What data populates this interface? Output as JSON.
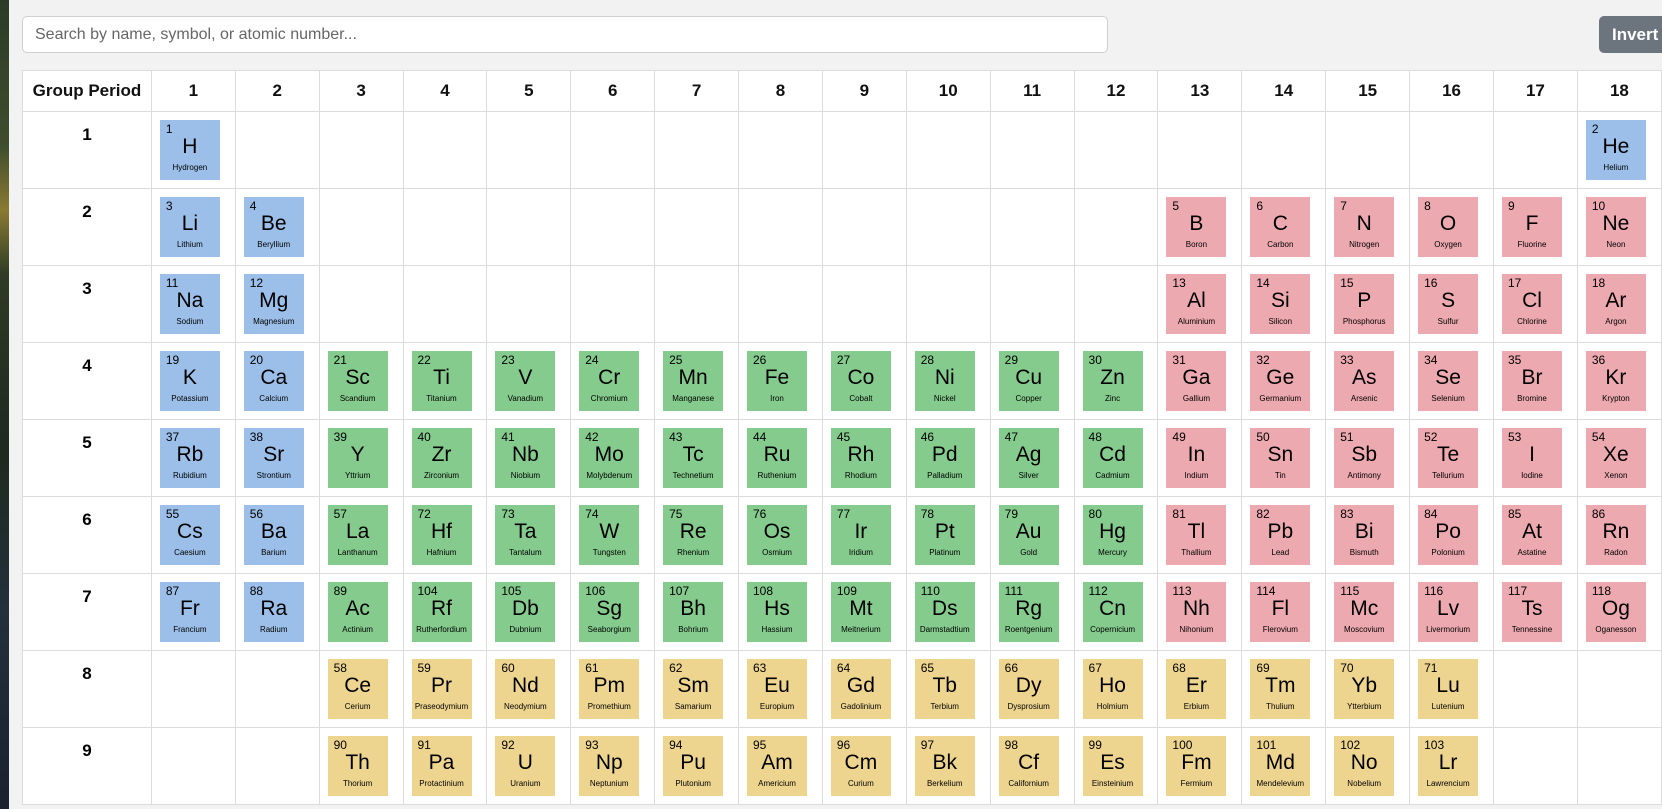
{
  "search": {
    "placeholder": "Search by name, symbol, or atomic number..."
  },
  "toolbar": {
    "invert_label": "Invert"
  },
  "table": {
    "corner_label": "Group Period",
    "groups": [
      "1",
      "2",
      "3",
      "4",
      "5",
      "6",
      "7",
      "8",
      "9",
      "10",
      "11",
      "12",
      "13",
      "14",
      "15",
      "16",
      "17",
      "18"
    ],
    "periods": [
      "1",
      "2",
      "3",
      "4",
      "5",
      "6",
      "7",
      "8",
      "9"
    ]
  },
  "category_colors": {
    "blue": "#9bbfe8",
    "pink": "#eda9b0",
    "green": "#84cb8d",
    "yellow": "#eed58f"
  },
  "elements": [
    {
      "number": "1",
      "symbol": "H",
      "name": "Hydrogen",
      "period": 1,
      "group": 1,
      "color": "blue"
    },
    {
      "number": "2",
      "symbol": "He",
      "name": "Helium",
      "period": 1,
      "group": 18,
      "color": "blue"
    },
    {
      "number": "3",
      "symbol": "Li",
      "name": "Lithium",
      "period": 2,
      "group": 1,
      "color": "blue"
    },
    {
      "number": "4",
      "symbol": "Be",
      "name": "Beryllium",
      "period": 2,
      "group": 2,
      "color": "blue"
    },
    {
      "number": "5",
      "symbol": "B",
      "name": "Boron",
      "period": 2,
      "group": 13,
      "color": "pink"
    },
    {
      "number": "6",
      "symbol": "C",
      "name": "Carbon",
      "period": 2,
      "group": 14,
      "color": "pink"
    },
    {
      "number": "7",
      "symbol": "N",
      "name": "Nitrogen",
      "period": 2,
      "group": 15,
      "color": "pink"
    },
    {
      "number": "8",
      "symbol": "O",
      "name": "Oxygen",
      "period": 2,
      "group": 16,
      "color": "pink"
    },
    {
      "number": "9",
      "symbol": "F",
      "name": "Fluorine",
      "period": 2,
      "group": 17,
      "color": "pink"
    },
    {
      "number": "10",
      "symbol": "Ne",
      "name": "Neon",
      "period": 2,
      "group": 18,
      "color": "pink"
    },
    {
      "number": "11",
      "symbol": "Na",
      "name": "Sodium",
      "period": 3,
      "group": 1,
      "color": "blue"
    },
    {
      "number": "12",
      "symbol": "Mg",
      "name": "Magnesium",
      "period": 3,
      "group": 2,
      "color": "blue"
    },
    {
      "number": "13",
      "symbol": "Al",
      "name": "Aluminium",
      "period": 3,
      "group": 13,
      "color": "pink"
    },
    {
      "number": "14",
      "symbol": "Si",
      "name": "Silicon",
      "period": 3,
      "group": 14,
      "color": "pink"
    },
    {
      "number": "15",
      "symbol": "P",
      "name": "Phosphorus",
      "period": 3,
      "group": 15,
      "color": "pink"
    },
    {
      "number": "16",
      "symbol": "S",
      "name": "Sulfur",
      "period": 3,
      "group": 16,
      "color": "pink"
    },
    {
      "number": "17",
      "symbol": "Cl",
      "name": "Chlorine",
      "period": 3,
      "group": 17,
      "color": "pink"
    },
    {
      "number": "18",
      "symbol": "Ar",
      "name": "Argon",
      "period": 3,
      "group": 18,
      "color": "pink"
    },
    {
      "number": "19",
      "symbol": "K",
      "name": "Potassium",
      "period": 4,
      "group": 1,
      "color": "blue"
    },
    {
      "number": "20",
      "symbol": "Ca",
      "name": "Calcium",
      "period": 4,
      "group": 2,
      "color": "blue"
    },
    {
      "number": "21",
      "symbol": "Sc",
      "name": "Scandium",
      "period": 4,
      "group": 3,
      "color": "green"
    },
    {
      "number": "22",
      "symbol": "Ti",
      "name": "Titanium",
      "period": 4,
      "group": 4,
      "color": "green"
    },
    {
      "number": "23",
      "symbol": "V",
      "name": "Vanadium",
      "period": 4,
      "group": 5,
      "color": "green"
    },
    {
      "number": "24",
      "symbol": "Cr",
      "name": "Chromium",
      "period": 4,
      "group": 6,
      "color": "green"
    },
    {
      "number": "25",
      "symbol": "Mn",
      "name": "Manganese",
      "period": 4,
      "group": 7,
      "color": "green"
    },
    {
      "number": "26",
      "symbol": "Fe",
      "name": "Iron",
      "period": 4,
      "group": 8,
      "color": "green"
    },
    {
      "number": "27",
      "symbol": "Co",
      "name": "Cobalt",
      "period": 4,
      "group": 9,
      "color": "green"
    },
    {
      "number": "28",
      "symbol": "Ni",
      "name": "Nickel",
      "period": 4,
      "group": 10,
      "color": "green"
    },
    {
      "number": "29",
      "symbol": "Cu",
      "name": "Copper",
      "period": 4,
      "group": 11,
      "color": "green"
    },
    {
      "number": "30",
      "symbol": "Zn",
      "name": "Zinc",
      "period": 4,
      "group": 12,
      "color": "green"
    },
    {
      "number": "31",
      "symbol": "Ga",
      "name": "Gallium",
      "period": 4,
      "group": 13,
      "color": "pink"
    },
    {
      "number": "32",
      "symbol": "Ge",
      "name": "Germanium",
      "period": 4,
      "group": 14,
      "color": "pink"
    },
    {
      "number": "33",
      "symbol": "As",
      "name": "Arsenic",
      "period": 4,
      "group": 15,
      "color": "pink"
    },
    {
      "number": "34",
      "symbol": "Se",
      "name": "Selenium",
      "period": 4,
      "group": 16,
      "color": "pink"
    },
    {
      "number": "35",
      "symbol": "Br",
      "name": "Bromine",
      "period": 4,
      "group": 17,
      "color": "pink"
    },
    {
      "number": "36",
      "symbol": "Kr",
      "name": "Krypton",
      "period": 4,
      "group": 18,
      "color": "pink"
    },
    {
      "number": "37",
      "symbol": "Rb",
      "name": "Rubidium",
      "period": 5,
      "group": 1,
      "color": "blue"
    },
    {
      "number": "38",
      "symbol": "Sr",
      "name": "Strontium",
      "period": 5,
      "group": 2,
      "color": "blue"
    },
    {
      "number": "39",
      "symbol": "Y",
      "name": "Yttrium",
      "period": 5,
      "group": 3,
      "color": "green"
    },
    {
      "number": "40",
      "symbol": "Zr",
      "name": "Zirconium",
      "period": 5,
      "group": 4,
      "color": "green"
    },
    {
      "number": "41",
      "symbol": "Nb",
      "name": "Niobium",
      "period": 5,
      "group": 5,
      "color": "green"
    },
    {
      "number": "42",
      "symbol": "Mo",
      "name": "Molybdenum",
      "period": 5,
      "group": 6,
      "color": "green"
    },
    {
      "number": "43",
      "symbol": "Tc",
      "name": "Technetium",
      "period": 5,
      "group": 7,
      "color": "green"
    },
    {
      "number": "44",
      "symbol": "Ru",
      "name": "Ruthenium",
      "period": 5,
      "group": 8,
      "color": "green"
    },
    {
      "number": "45",
      "symbol": "Rh",
      "name": "Rhodium",
      "period": 5,
      "group": 9,
      "color": "green"
    },
    {
      "number": "46",
      "symbol": "Pd",
      "name": "Palladium",
      "period": 5,
      "group": 10,
      "color": "green"
    },
    {
      "number": "47",
      "symbol": "Ag",
      "name": "Silver",
      "period": 5,
      "group": 11,
      "color": "green"
    },
    {
      "number": "48",
      "symbol": "Cd",
      "name": "Cadmium",
      "period": 5,
      "group": 12,
      "color": "green"
    },
    {
      "number": "49",
      "symbol": "In",
      "name": "Indium",
      "period": 5,
      "group": 13,
      "color": "pink"
    },
    {
      "number": "50",
      "symbol": "Sn",
      "name": "Tin",
      "period": 5,
      "group": 14,
      "color": "pink"
    },
    {
      "number": "51",
      "symbol": "Sb",
      "name": "Antimony",
      "period": 5,
      "group": 15,
      "color": "pink"
    },
    {
      "number": "52",
      "symbol": "Te",
      "name": "Tellurium",
      "period": 5,
      "group": 16,
      "color": "pink"
    },
    {
      "number": "53",
      "symbol": "I",
      "name": "Iodine",
      "period": 5,
      "group": 17,
      "color": "pink"
    },
    {
      "number": "54",
      "symbol": "Xe",
      "name": "Xenon",
      "period": 5,
      "group": 18,
      "color": "pink"
    },
    {
      "number": "55",
      "symbol": "Cs",
      "name": "Caesium",
      "period": 6,
      "group": 1,
      "color": "blue"
    },
    {
      "number": "56",
      "symbol": "Ba",
      "name": "Barium",
      "period": 6,
      "group": 2,
      "color": "blue"
    },
    {
      "number": "57",
      "symbol": "La",
      "name": "Lanthanum",
      "period": 6,
      "group": 3,
      "color": "green"
    },
    {
      "number": "72",
      "symbol": "Hf",
      "name": "Hafnium",
      "period": 6,
      "group": 4,
      "color": "green"
    },
    {
      "number": "73",
      "symbol": "Ta",
      "name": "Tantalum",
      "period": 6,
      "group": 5,
      "color": "green"
    },
    {
      "number": "74",
      "symbol": "W",
      "name": "Tungsten",
      "period": 6,
      "group": 6,
      "color": "green"
    },
    {
      "number": "75",
      "symbol": "Re",
      "name": "Rhenium",
      "period": 6,
      "group": 7,
      "color": "green"
    },
    {
      "number": "76",
      "symbol": "Os",
      "name": "Osmium",
      "period": 6,
      "group": 8,
      "color": "green"
    },
    {
      "number": "77",
      "symbol": "Ir",
      "name": "Iridium",
      "period": 6,
      "group": 9,
      "color": "green"
    },
    {
      "number": "78",
      "symbol": "Pt",
      "name": "Platinum",
      "period": 6,
      "group": 10,
      "color": "green"
    },
    {
      "number": "79",
      "symbol": "Au",
      "name": "Gold",
      "period": 6,
      "group": 11,
      "color": "green"
    },
    {
      "number": "80",
      "symbol": "Hg",
      "name": "Mercury",
      "period": 6,
      "group": 12,
      "color": "green"
    },
    {
      "number": "81",
      "symbol": "Tl",
      "name": "Thallium",
      "period": 6,
      "group": 13,
      "color": "pink"
    },
    {
      "number": "82",
      "symbol": "Pb",
      "name": "Lead",
      "period": 6,
      "group": 14,
      "color": "pink"
    },
    {
      "number": "83",
      "symbol": "Bi",
      "name": "Bismuth",
      "period": 6,
      "group": 15,
      "color": "pink"
    },
    {
      "number": "84",
      "symbol": "Po",
      "name": "Polonium",
      "period": 6,
      "group": 16,
      "color": "pink"
    },
    {
      "number": "85",
      "symbol": "At",
      "name": "Astatine",
      "period": 6,
      "group": 17,
      "color": "pink"
    },
    {
      "number": "86",
      "symbol": "Rn",
      "name": "Radon",
      "period": 6,
      "group": 18,
      "color": "pink"
    },
    {
      "number": "87",
      "symbol": "Fr",
      "name": "Francium",
      "period": 7,
      "group": 1,
      "color": "blue"
    },
    {
      "number": "88",
      "symbol": "Ra",
      "name": "Radium",
      "period": 7,
      "group": 2,
      "color": "blue"
    },
    {
      "number": "89",
      "symbol": "Ac",
      "name": "Actinium",
      "period": 7,
      "group": 3,
      "color": "green"
    },
    {
      "number": "104",
      "symbol": "Rf",
      "name": "Rutherfordium",
      "period": 7,
      "group": 4,
      "color": "green"
    },
    {
      "number": "105",
      "symbol": "Db",
      "name": "Dubnium",
      "period": 7,
      "group": 5,
      "color": "green"
    },
    {
      "number": "106",
      "symbol": "Sg",
      "name": "Seaborgium",
      "period": 7,
      "group": 6,
      "color": "green"
    },
    {
      "number": "107",
      "symbol": "Bh",
      "name": "Bohrium",
      "period": 7,
      "group": 7,
      "color": "green"
    },
    {
      "number": "108",
      "symbol": "Hs",
      "name": "Hassium",
      "period": 7,
      "group": 8,
      "color": "green"
    },
    {
      "number": "109",
      "symbol": "Mt",
      "name": "Meitnerium",
      "period": 7,
      "group": 9,
      "color": "green"
    },
    {
      "number": "110",
      "symbol": "Ds",
      "name": "Darmstadtium",
      "period": 7,
      "group": 10,
      "color": "green"
    },
    {
      "number": "111",
      "symbol": "Rg",
      "name": "Roentgenium",
      "period": 7,
      "group": 11,
      "color": "green"
    },
    {
      "number": "112",
      "symbol": "Cn",
      "name": "Copernicium",
      "period": 7,
      "group": 12,
      "color": "green"
    },
    {
      "number": "113",
      "symbol": "Nh",
      "name": "Nihonium",
      "period": 7,
      "group": 13,
      "color": "pink"
    },
    {
      "number": "114",
      "symbol": "Fl",
      "name": "Flerovium",
      "period": 7,
      "group": 14,
      "color": "pink"
    },
    {
      "number": "115",
      "symbol": "Mc",
      "name": "Moscovium",
      "period": 7,
      "group": 15,
      "color": "pink"
    },
    {
      "number": "116",
      "symbol": "Lv",
      "name": "Livermorium",
      "period": 7,
      "group": 16,
      "color": "pink"
    },
    {
      "number": "117",
      "symbol": "Ts",
      "name": "Tennessine",
      "period": 7,
      "group": 17,
      "color": "pink"
    },
    {
      "number": "118",
      "symbol": "Og",
      "name": "Oganesson",
      "period": 7,
      "group": 18,
      "color": "pink"
    },
    {
      "number": "58",
      "symbol": "Ce",
      "name": "Cerium",
      "period": 8,
      "group": 3,
      "color": "yellow"
    },
    {
      "number": "59",
      "symbol": "Pr",
      "name": "Praseodymium",
      "period": 8,
      "group": 4,
      "color": "yellow"
    },
    {
      "number": "60",
      "symbol": "Nd",
      "name": "Neodymium",
      "period": 8,
      "group": 5,
      "color": "yellow"
    },
    {
      "number": "61",
      "symbol": "Pm",
      "name": "Promethium",
      "period": 8,
      "group": 6,
      "color": "yellow"
    },
    {
      "number": "62",
      "symbol": "Sm",
      "name": "Samarium",
      "period": 8,
      "group": 7,
      "color": "yellow"
    },
    {
      "number": "63",
      "symbol": "Eu",
      "name": "Europium",
      "period": 8,
      "group": 8,
      "color": "yellow"
    },
    {
      "number": "64",
      "symbol": "Gd",
      "name": "Gadolinium",
      "period": 8,
      "group": 9,
      "color": "yellow"
    },
    {
      "number": "65",
      "symbol": "Tb",
      "name": "Terbium",
      "period": 8,
      "group": 10,
      "color": "yellow"
    },
    {
      "number": "66",
      "symbol": "Dy",
      "name": "Dysprosium",
      "period": 8,
      "group": 11,
      "color": "yellow"
    },
    {
      "number": "67",
      "symbol": "Ho",
      "name": "Holmium",
      "period": 8,
      "group": 12,
      "color": "yellow"
    },
    {
      "number": "68",
      "symbol": "Er",
      "name": "Erbium",
      "period": 8,
      "group": 13,
      "color": "yellow"
    },
    {
      "number": "69",
      "symbol": "Tm",
      "name": "Thulium",
      "period": 8,
      "group": 14,
      "color": "yellow"
    },
    {
      "number": "70",
      "symbol": "Yb",
      "name": "Ytterbium",
      "period": 8,
      "group": 15,
      "color": "yellow"
    },
    {
      "number": "71",
      "symbol": "Lu",
      "name": "Lutenium",
      "period": 8,
      "group": 16,
      "color": "yellow"
    },
    {
      "number": "90",
      "symbol": "Th",
      "name": "Thorium",
      "period": 9,
      "group": 3,
      "color": "yellow"
    },
    {
      "number": "91",
      "symbol": "Pa",
      "name": "Protactinium",
      "period": 9,
      "group": 4,
      "color": "yellow"
    },
    {
      "number": "92",
      "symbol": "U",
      "name": "Uranium",
      "period": 9,
      "group": 5,
      "color": "yellow"
    },
    {
      "number": "93",
      "symbol": "Np",
      "name": "Neptunium",
      "period": 9,
      "group": 6,
      "color": "yellow"
    },
    {
      "number": "94",
      "symbol": "Pu",
      "name": "Plutonium",
      "period": 9,
      "group": 7,
      "color": "yellow"
    },
    {
      "number": "95",
      "symbol": "Am",
      "name": "Americium",
      "period": 9,
      "group": 8,
      "color": "yellow"
    },
    {
      "number": "96",
      "symbol": "Cm",
      "name": "Curium",
      "period": 9,
      "group": 9,
      "color": "yellow"
    },
    {
      "number": "97",
      "symbol": "Bk",
      "name": "Berkelium",
      "period": 9,
      "group": 10,
      "color": "yellow"
    },
    {
      "number": "98",
      "symbol": "Cf",
      "name": "Californium",
      "period": 9,
      "group": 11,
      "color": "yellow"
    },
    {
      "number": "99",
      "symbol": "Es",
      "name": "Einsteinium",
      "period": 9,
      "group": 12,
      "color": "yellow"
    },
    {
      "number": "100",
      "symbol": "Fm",
      "name": "Fermium",
      "period": 9,
      "group": 13,
      "color": "yellow"
    },
    {
      "number": "101",
      "symbol": "Md",
      "name": "Mendelevium",
      "period": 9,
      "group": 14,
      "color": "yellow"
    },
    {
      "number": "102",
      "symbol": "No",
      "name": "Nobelium",
      "period": 9,
      "group": 15,
      "color": "yellow"
    },
    {
      "number": "103",
      "symbol": "Lr",
      "name": "Lawrencium",
      "period": 9,
      "group": 16,
      "color": "yellow"
    }
  ]
}
